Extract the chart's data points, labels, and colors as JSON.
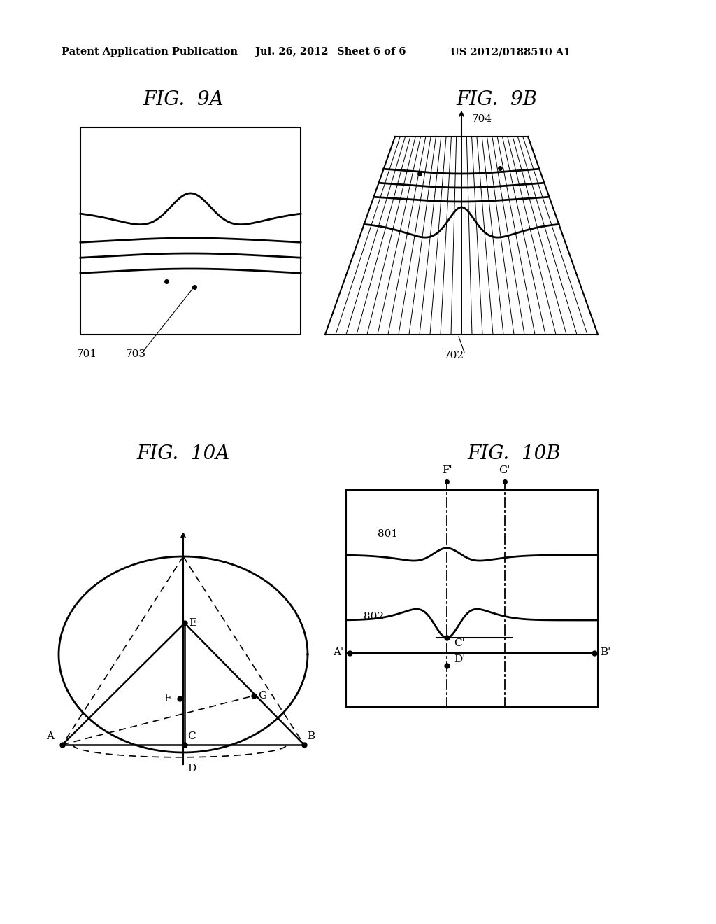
{
  "bg_color": "#ffffff",
  "header_text": "Patent Application Publication",
  "header_date": "Jul. 26, 2012",
  "header_sheet": "Sheet 6 of 6",
  "header_patent": "US 2012/0188510 A1",
  "fig9a_title": "FIG.  9A",
  "fig9b_title": "FIG.  9B",
  "fig10a_title": "FIG.  10A",
  "fig10b_title": "FIG.  10B",
  "label_701": "701",
  "label_703": "703",
  "label_702": "702",
  "label_704": "704",
  "label_801": "801",
  "label_802": "802"
}
